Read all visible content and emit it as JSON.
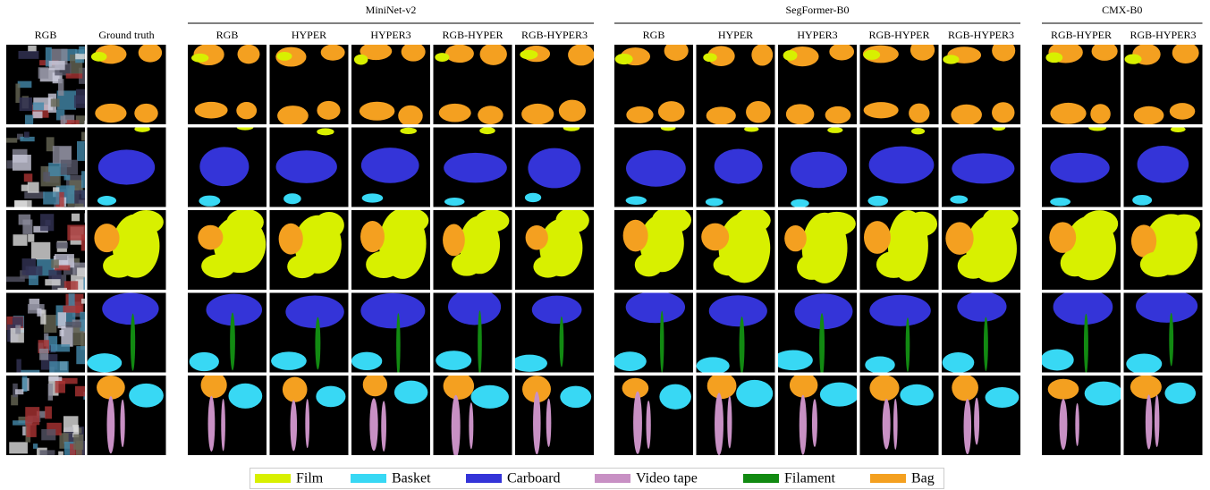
{
  "left_columns": [
    "RGB",
    "Ground truth"
  ],
  "groups": [
    {
      "title": "MiniNet-v2",
      "columns": [
        "RGB",
        "HYPER",
        "HYPER3",
        "RGB-HYPER",
        "RGB-HYPER3"
      ]
    },
    {
      "title": "SegFormer-B0",
      "columns": [
        "RGB",
        "HYPER",
        "HYPER3",
        "RGB-HYPER",
        "RGB-HYPER3"
      ]
    },
    {
      "title": "CMX-B0",
      "columns": [
        "RGB-HYPER",
        "RGB-HYPER3"
      ]
    }
  ],
  "legend": [
    {
      "label": "Film",
      "color": "#d8f000"
    },
    {
      "label": "Basket",
      "color": "#38d8f4"
    },
    {
      "label": "Carboard",
      "color": "#3434d8"
    },
    {
      "label": "Video tape",
      "color": "#c890c4"
    },
    {
      "label": "Filament",
      "color": "#128a12"
    },
    {
      "label": "Bag",
      "color": "#f4a020"
    }
  ]
}
